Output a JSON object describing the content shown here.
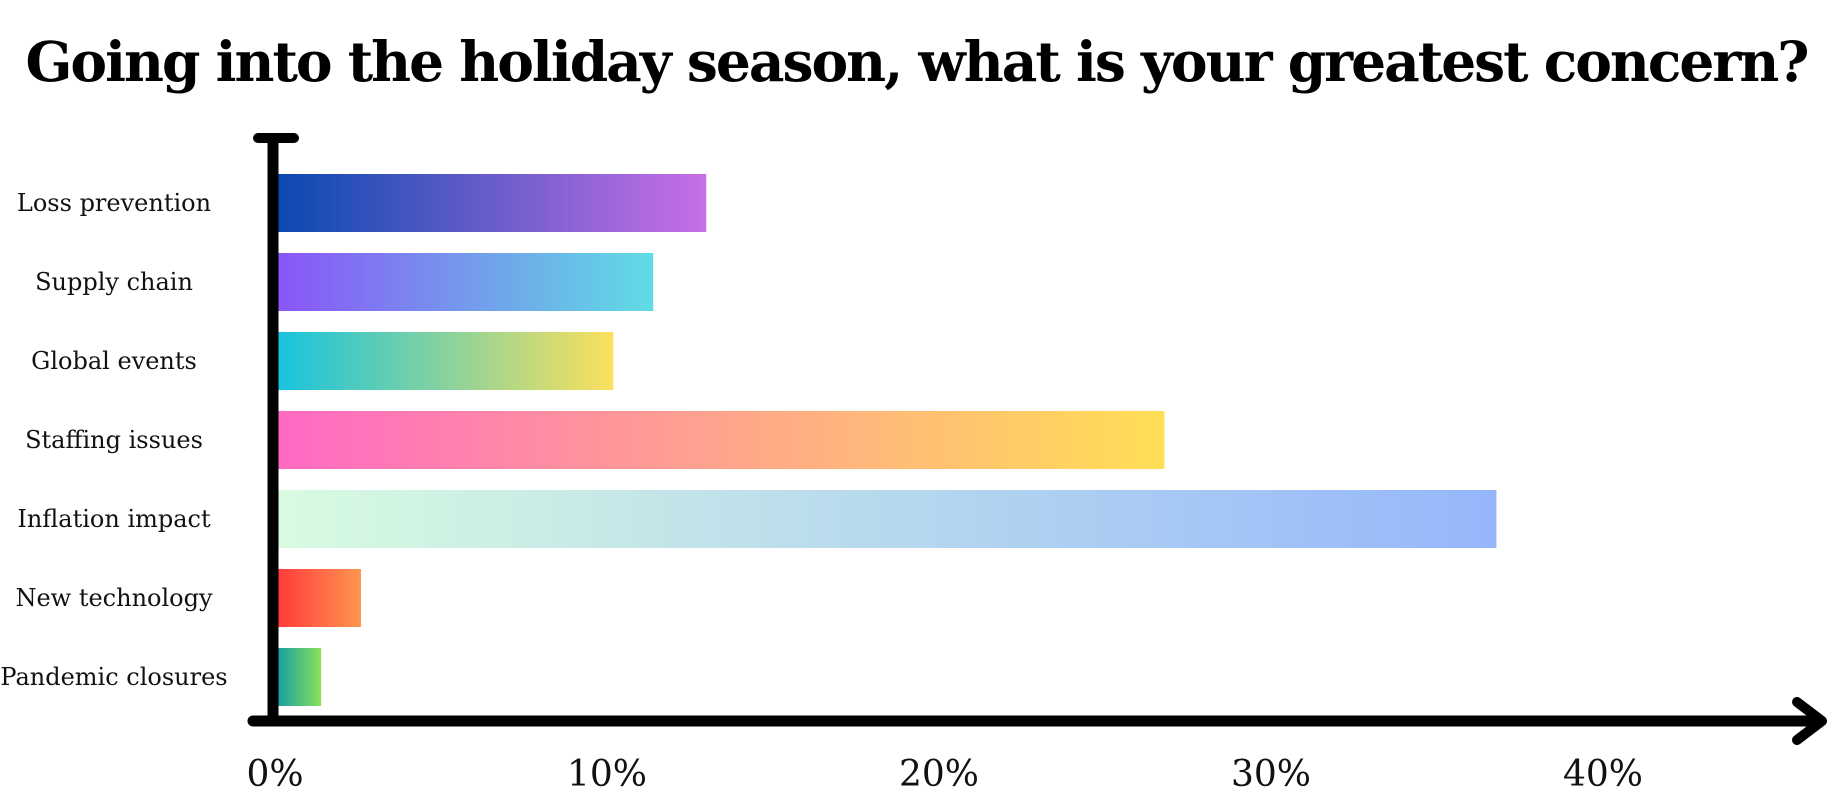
{
  "chart_data": {
    "type": "bar",
    "orientation": "horizontal",
    "title": "Going into the holiday season, what is your greatest concern?",
    "xlabel": "",
    "ylabel": "",
    "categories": [
      "Loss prevention",
      "Supply chain",
      "Global events",
      "Staffing issues",
      "Inflation impact",
      "New technology",
      "Pandemic closures"
    ],
    "values": [
      12.9,
      11.3,
      10.1,
      26.7,
      36.7,
      2.5,
      1.3
    ],
    "xlim": [
      0,
      40
    ],
    "x_ticks": [
      "0%",
      "10%",
      "20%",
      "30%",
      "40%"
    ],
    "grid": false,
    "bar_gradients": [
      [
        "#0a4ab0",
        "#c86fe6"
      ],
      [
        "#8a55f7",
        "#5fdde3"
      ],
      [
        "#17c4de",
        "#fbe05c"
      ],
      [
        "#ff69c4",
        "#ffdf55"
      ],
      [
        "#d8fbe0",
        "#95b6fb"
      ],
      [
        "#ff3b3b",
        "#ff9550"
      ],
      [
        "#1aa0a0",
        "#8ae05a"
      ]
    ],
    "axis_color": "#000000"
  }
}
